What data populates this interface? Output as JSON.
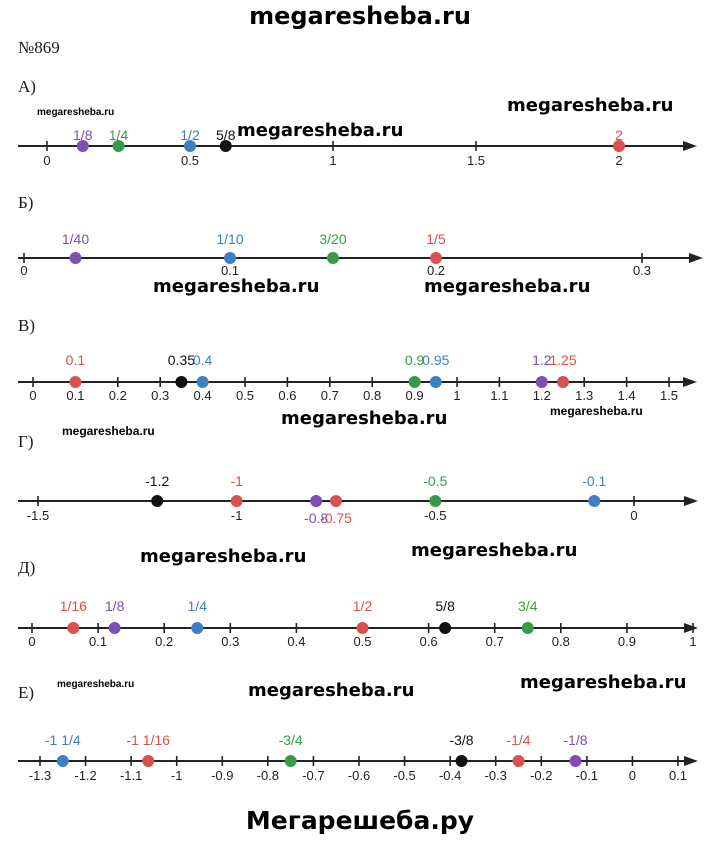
{
  "header": {
    "site": "megaresheba.ru"
  },
  "footer": {
    "site": "Мегарешеба.ру"
  },
  "task_number": "№869",
  "colors": {
    "purple": "#7b4fb5",
    "green": "#3a9a4a",
    "blue": "#3f7fc4",
    "red": "#d9514e",
    "black": "#111111",
    "axis": "#222222"
  },
  "sections": [
    {
      "letter": "А)",
      "ticks": [
        {
          "value": 0,
          "label": "0"
        },
        {
          "value": 0.5,
          "label": "0.5"
        },
        {
          "value": 1,
          "label": "1"
        },
        {
          "value": 1.5,
          "label": "1.5"
        },
        {
          "value": 2,
          "label": "2"
        }
      ],
      "points": [
        {
          "value": 0.125,
          "label": "1/8",
          "color": "purple"
        },
        {
          "value": 0.25,
          "label": "1/4",
          "color": "green"
        },
        {
          "value": 0.5,
          "label": "1/2",
          "color": "blue"
        },
        {
          "value": 0.625,
          "label": "5/8",
          "color": "black"
        },
        {
          "value": 2,
          "label": "2",
          "color": "red"
        }
      ]
    },
    {
      "letter": "Б)",
      "ticks": [
        {
          "value": 0,
          "label": "0"
        },
        {
          "value": 0.1,
          "label": "0.1"
        },
        {
          "value": 0.2,
          "label": "0.2"
        },
        {
          "value": 0.3,
          "label": "0.3"
        }
      ],
      "points": [
        {
          "value": 0.025,
          "label": "1/40",
          "color": "purple"
        },
        {
          "value": 0.1,
          "label": "1/10",
          "color": "blue"
        },
        {
          "value": 0.15,
          "label": "3/20",
          "color": "green"
        },
        {
          "value": 0.2,
          "label": "1/5",
          "color": "red"
        }
      ]
    },
    {
      "letter": "В)",
      "ticks": [
        {
          "value": 0,
          "label": "0"
        },
        {
          "value": 0.1,
          "label": "0.1"
        },
        {
          "value": 0.2,
          "label": "0.2"
        },
        {
          "value": 0.3,
          "label": "0.3"
        },
        {
          "value": 0.4,
          "label": "0.4"
        },
        {
          "value": 0.5,
          "label": "0.5"
        },
        {
          "value": 0.6,
          "label": "0.6"
        },
        {
          "value": 0.7,
          "label": "0.7"
        },
        {
          "value": 0.8,
          "label": "0.8"
        },
        {
          "value": 0.9,
          "label": "0.9"
        },
        {
          "value": 1,
          "label": "1"
        },
        {
          "value": 1.1,
          "label": "1.1"
        },
        {
          "value": 1.2,
          "label": "1.2"
        },
        {
          "value": 1.3,
          "label": "1.3"
        },
        {
          "value": 1.4,
          "label": "1.4"
        },
        {
          "value": 1.5,
          "label": "1.5"
        }
      ],
      "points": [
        {
          "value": 0.1,
          "label": "0.1",
          "color": "red"
        },
        {
          "value": 0.35,
          "label": "0.35",
          "color": "black"
        },
        {
          "value": 0.4,
          "label": "0.4",
          "color": "blue"
        },
        {
          "value": 0.9,
          "label": "0.9",
          "color": "green"
        },
        {
          "value": 0.95,
          "label": "0.95",
          "color": "blue"
        },
        {
          "value": 1.2,
          "label": "1.2",
          "color": "purple"
        },
        {
          "value": 1.25,
          "label": "1.25",
          "color": "red"
        }
      ]
    },
    {
      "letter": "Г)",
      "ticks": [
        {
          "value": -1.5,
          "label": "-1.5"
        },
        {
          "value": -1,
          "label": "-1"
        },
        {
          "value": -0.5,
          "label": "-0.5"
        },
        {
          "value": 0,
          "label": "0"
        }
      ],
      "points": [
        {
          "value": -1.2,
          "label": "-1.2",
          "color": "black"
        },
        {
          "value": -1,
          "label": "-1",
          "color": "red"
        },
        {
          "value": -0.8,
          "label": "-0.8",
          "color": "purple"
        },
        {
          "value": -0.75,
          "label": "-0.75",
          "color": "red"
        },
        {
          "value": -0.5,
          "label": "-0.5",
          "color": "green"
        },
        {
          "value": -0.1,
          "label": "-0.1",
          "color": "blue"
        }
      ]
    },
    {
      "letter": "Д)",
      "ticks": [
        {
          "value": 0,
          "label": "0"
        },
        {
          "value": 0.1,
          "label": "0.1"
        },
        {
          "value": 0.2,
          "label": "0.2"
        },
        {
          "value": 0.3,
          "label": "0.3"
        },
        {
          "value": 0.4,
          "label": "0.4"
        },
        {
          "value": 0.5,
          "label": "0.5"
        },
        {
          "value": 0.6,
          "label": "0.6"
        },
        {
          "value": 0.7,
          "label": "0.7"
        },
        {
          "value": 0.8,
          "label": "0.8"
        },
        {
          "value": 0.9,
          "label": "0.9"
        },
        {
          "value": 1,
          "label": "1"
        }
      ],
      "points": [
        {
          "value": 0.0625,
          "label": "1/16",
          "color": "red"
        },
        {
          "value": 0.125,
          "label": "1/8",
          "color": "purple"
        },
        {
          "value": 0.25,
          "label": "1/4",
          "color": "blue"
        },
        {
          "value": 0.5,
          "label": "1/2",
          "color": "red"
        },
        {
          "value": 0.625,
          "label": "5/8",
          "color": "black"
        },
        {
          "value": 0.75,
          "label": "3/4",
          "color": "green"
        }
      ]
    },
    {
      "letter": "Е)",
      "ticks": [
        {
          "value": -1.3,
          "label": "-1.3"
        },
        {
          "value": -1.2,
          "label": "-1.2"
        },
        {
          "value": -1.1,
          "label": "-1.1"
        },
        {
          "value": -1,
          "label": "-1"
        },
        {
          "value": -0.9,
          "label": "-0.9"
        },
        {
          "value": -0.8,
          "label": "-0.8"
        },
        {
          "value": -0.7,
          "label": "-0.7"
        },
        {
          "value": -0.6,
          "label": "-0.6"
        },
        {
          "value": -0.5,
          "label": "-0.5"
        },
        {
          "value": -0.4,
          "label": "-0.4"
        },
        {
          "value": -0.3,
          "label": "-0.3"
        },
        {
          "value": -0.2,
          "label": "-0.2"
        },
        {
          "value": -0.1,
          "label": "-0.1"
        },
        {
          "value": 0,
          "label": "0"
        },
        {
          "value": 0.1,
          "label": "0.1"
        }
      ],
      "points": [
        {
          "value": -1.25,
          "label": "-1 1/4",
          "color": "blue"
        },
        {
          "value": -1.0625,
          "label": "-1 1/16",
          "color": "red"
        },
        {
          "value": -0.75,
          "label": "-3/4",
          "color": "green"
        },
        {
          "value": -0.375,
          "label": "-3/8",
          "color": "black"
        },
        {
          "value": -0.25,
          "label": "-1/4",
          "color": "red"
        },
        {
          "value": -0.125,
          "label": "-1/8",
          "color": "purple"
        }
      ]
    }
  ]
}
